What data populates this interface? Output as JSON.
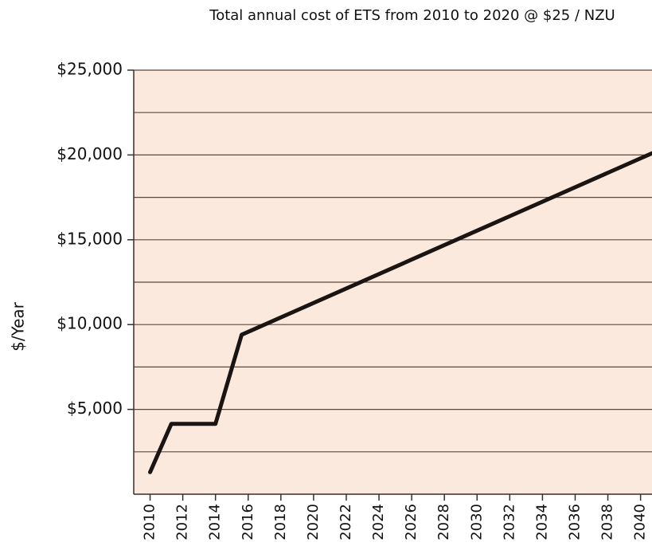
{
  "chart_data": {
    "type": "line",
    "title": "Total annual cost of ETS from 2010 to 2020 @ $25 / NZU",
    "y_label": "$/Year",
    "x": [
      2010,
      2011.3,
      2014,
      2015.6,
      2040.7
    ],
    "series": [
      {
        "color": "#1a1512",
        "values": [
          1300,
          4150,
          4150,
          9400,
          20100
        ]
      }
    ],
    "xlim": [
      2009,
      2040.7
    ],
    "xticks": [
      2010,
      2012,
      2014,
      2016,
      2018,
      2020,
      2022,
      2024,
      2026,
      2028,
      2030,
      2032,
      2034,
      2036,
      2038,
      2040
    ],
    "ylim": [
      0,
      25000
    ],
    "yticks": [
      {
        "value": 2500,
        "label": null
      },
      {
        "value": 5000,
        "label": "$5,000"
      },
      {
        "value": 7500,
        "label": null
      },
      {
        "value": 10000,
        "label": "$10,000"
      },
      {
        "value": 12500,
        "label": null
      },
      {
        "value": 15000,
        "label": "$15,000"
      },
      {
        "value": 17500,
        "label": null
      },
      {
        "value": 20000,
        "label": "$20,000"
      },
      {
        "value": 22500,
        "label": null
      },
      {
        "value": 25000,
        "label": "$25,000"
      }
    ],
    "background": "#fbe9dd",
    "grid": true
  }
}
